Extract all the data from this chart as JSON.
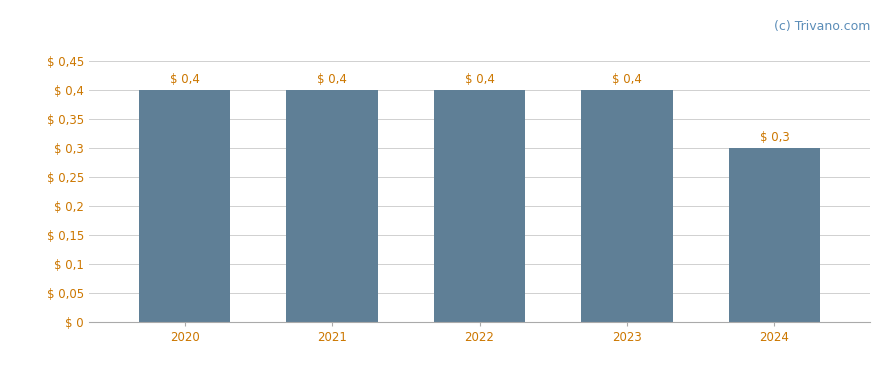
{
  "categories": [
    "2020",
    "2021",
    "2022",
    "2023",
    "2024"
  ],
  "values": [
    0.4,
    0.4,
    0.4,
    0.4,
    0.3
  ],
  "bar_labels": [
    "$ 0,4",
    "$ 0,4",
    "$ 0,4",
    "$ 0,4",
    "$ 0,3"
  ],
  "bar_color": "#5f7f96",
  "background_color": "#ffffff",
  "yticks": [
    0,
    0.05,
    0.1,
    0.15,
    0.2,
    0.25,
    0.3,
    0.35,
    0.4,
    0.45
  ],
  "ytick_labels": [
    "$ 0",
    "$ 0,05",
    "$ 0,1",
    "$ 0,15",
    "$ 0,2",
    "$ 0,25",
    "$ 0,3",
    "$ 0,35",
    "$ 0,4",
    "$ 0,45"
  ],
  "ylim": [
    0,
    0.478
  ],
  "grid_color": "#d0d0d0",
  "watermark": "(c) Trivano.com",
  "watermark_color": "#5b8db8",
  "tick_label_color": "#cc7700",
  "bar_width": 0.62,
  "label_fontsize": 8.5,
  "tick_fontsize": 8.5,
  "watermark_fontsize": 9.0,
  "xlabel_color": "#cc7700"
}
